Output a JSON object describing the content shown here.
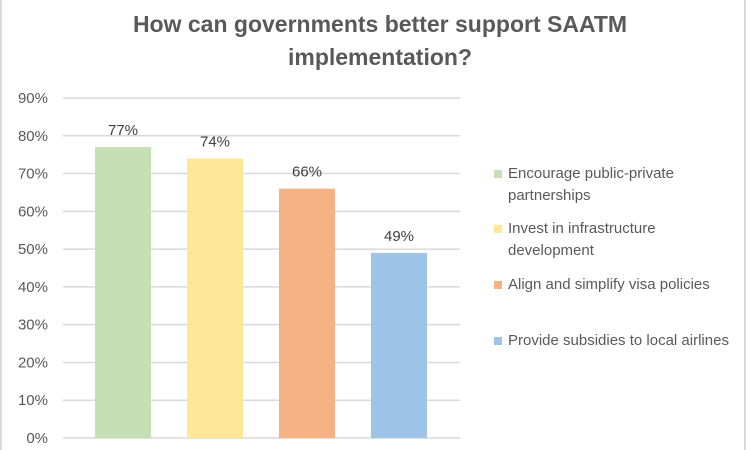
{
  "chart_data": {
    "type": "bar",
    "title": "How can governments better support SAATM implementation?",
    "categories": [
      "Encourage public-private partnerships",
      "Invest in infrastructure development",
      "Align and simplify visa policies",
      "Provide subsidies to local airlines"
    ],
    "values": [
      77,
      74,
      66,
      49
    ],
    "data_labels": [
      "77%",
      "74%",
      "66%",
      "49%"
    ],
    "colors": [
      "#c5e0b4",
      "#ffe699",
      "#f4b183",
      "#9dc3e6"
    ],
    "ylim": [
      0,
      90
    ],
    "yticks": [
      "0%",
      "10%",
      "20%",
      "30%",
      "40%",
      "50%",
      "60%",
      "70%",
      "80%",
      "90%"
    ],
    "grid": true,
    "legend": "right"
  }
}
